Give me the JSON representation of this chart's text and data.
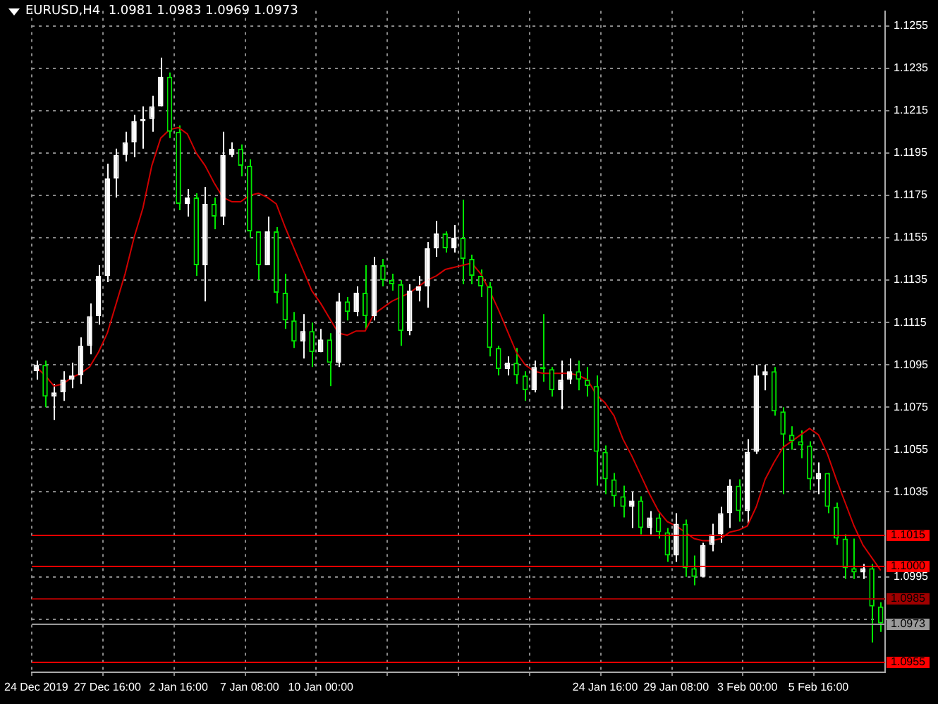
{
  "chart_data": {
    "type": "candlestick",
    "title": "EURUSD,H4  1.0981 1.0983 1.0969 1.0973",
    "colors": [
      "#ffffff",
      "#00e600",
      "#ffffff",
      "#ffffff",
      "#ffffff",
      "#ffffff",
      "#ffffff",
      "#ffffff",
      "#ffffff",
      "#ffffff",
      "#ffffff",
      "#ffffff",
      "#ffffff",
      "#ffffff",
      "#ffffff",
      "#00e600",
      "#00e600",
      "#ffffff",
      "#00e600",
      "#ffffff",
      "#00e600",
      "#ffffff",
      "#ffffff",
      "#00e600",
      "#00e600",
      "#00e600",
      "#ffffff",
      "#00e600",
      "#00e600",
      "#00e600",
      "#ffffff",
      "#00e600",
      "#ffffff",
      "#00e600",
      "#ffffff",
      "#00e600",
      "#ffffff",
      "#00e600",
      "#ffffff",
      "#00e600",
      "#00e600",
      "#00e600",
      "#ffffff",
      "#ffffff",
      "#ffffff",
      "#ffffff",
      "#00e600",
      "#ffffff",
      "#00e600",
      "#00e600",
      "#00e600",
      "#00e600",
      "#00e600",
      "#ffffff",
      "#00e600",
      "#00e600",
      "#ffffff",
      "#00e600",
      "#00e600",
      "#ffffff",
      "#ffffff",
      "#00e600",
      "#00e600",
      "#00e600",
      "#00e600",
      "#00e600",
      "#00e600",
      "#ffffff",
      "#00e600",
      "#ffffff",
      "#00e600",
      "#00e600",
      "#ffffff",
      "#00e600",
      "#00e600",
      "#ffffff",
      "#ffffff",
      "#ffffff",
      "#ffffff",
      "#00e600",
      "#ffffff",
      "#ffffff",
      "#ffffff",
      "#00e600",
      "#00e600",
      "#00e600",
      "#00e600",
      "#00e600",
      "#ffffff",
      "#00e600",
      "#00e600",
      "#00e600",
      "#00e600",
      "#ffffff",
      "#00e600",
      "#00e600"
    ],
    "categories": [
      "24 Dec 2019",
      null,
      null,
      null,
      null,
      null,
      null,
      null,
      "27 Dec 16:00",
      null,
      null,
      null,
      null,
      null,
      null,
      null,
      "2 Jan 16:00",
      null,
      null,
      null,
      null,
      null,
      null,
      null,
      "7 Jan 08:00",
      null,
      null,
      null,
      null,
      null,
      null,
      null,
      "10 Jan 00:00",
      null,
      null,
      null,
      null,
      null,
      null,
      null,
      null,
      null,
      null,
      null,
      null,
      null,
      null,
      null,
      null,
      null,
      null,
      null,
      null,
      null,
      null,
      null,
      null,
      null,
      null,
      null,
      null,
      null,
      null,
      null,
      "24 Jan 16:00",
      null,
      null,
      null,
      null,
      null,
      null,
      null,
      "29 Jan 08:00",
      null,
      null,
      null,
      null,
      null,
      null,
      null,
      "3 Feb 00:00",
      null,
      null,
      null,
      null,
      null,
      null,
      null,
      "5 Feb 16:00",
      null,
      null,
      null,
      null,
      null,
      null,
      null
    ],
    "ohlc": [
      [
        1.1092,
        1.1097,
        1.1088,
        1.1095
      ],
      [
        1.1095,
        1.1097,
        1.1075,
        1.108
      ],
      [
        1.108,
        1.1086,
        1.1069,
        1.1082
      ],
      [
        1.1082,
        1.1092,
        1.1078,
        1.1088
      ],
      [
        1.1088,
        1.1096,
        1.1084,
        1.109
      ],
      [
        1.109,
        1.1108,
        1.1086,
        1.1104
      ],
      [
        1.1104,
        1.1124,
        1.11,
        1.1118
      ],
      [
        1.1118,
        1.1142,
        1.1114,
        1.1137
      ],
      [
        1.1137,
        1.119,
        1.1134,
        1.1183
      ],
      [
        1.1183,
        1.1197,
        1.1174,
        1.1194
      ],
      [
        1.1194,
        1.1205,
        1.1191,
        1.12
      ],
      [
        1.12,
        1.1213,
        1.1193,
        1.121
      ],
      [
        1.121,
        1.1217,
        1.1197,
        1.1211
      ],
      [
        1.1211,
        1.1222,
        1.1205,
        1.1217
      ],
      [
        1.1217,
        1.124,
        1.1217,
        1.1231
      ],
      [
        1.1231,
        1.1233,
        1.1202,
        1.1205
      ],
      [
        1.1205,
        1.1208,
        1.1168,
        1.1171
      ],
      [
        1.1171,
        1.1178,
        1.1165,
        1.1174
      ],
      [
        1.1174,
        1.1176,
        1.1137,
        1.1142
      ],
      [
        1.1142,
        1.1179,
        1.1125,
        1.1171
      ],
      [
        1.1171,
        1.1174,
        1.1159,
        1.1165
      ],
      [
        1.1165,
        1.1205,
        1.1161,
        1.1194
      ],
      [
        1.1194,
        1.12,
        1.1193,
        1.1197
      ],
      [
        1.1197,
        1.1199,
        1.1184,
        1.1189
      ],
      [
        1.1189,
        1.1192,
        1.1155,
        1.1158
      ],
      [
        1.1158,
        1.1158,
        1.1135,
        1.1142
      ],
      [
        1.1142,
        1.1165,
        1.1142,
        1.1158
      ],
      [
        1.1158,
        1.116,
        1.1124,
        1.1129
      ],
      [
        1.1129,
        1.1138,
        1.1112,
        1.1116
      ],
      [
        1.1116,
        1.112,
        1.1103,
        1.1106
      ],
      [
        1.1106,
        1.1119,
        1.1098,
        1.1111
      ],
      [
        1.1111,
        1.1115,
        1.1094,
        1.1101
      ],
      [
        1.1101,
        1.1112,
        1.1101,
        1.1107
      ],
      [
        1.1107,
        1.111,
        1.1085,
        1.1096
      ],
      [
        1.1096,
        1.1129,
        1.1094,
        1.1125
      ],
      [
        1.1125,
        1.1127,
        1.1116,
        1.112
      ],
      [
        1.112,
        1.1132,
        1.1118,
        1.1129
      ],
      [
        1.1129,
        1.1142,
        1.1112,
        1.1118
      ],
      [
        1.1118,
        1.1146,
        1.1116,
        1.1142
      ],
      [
        1.1142,
        1.1145,
        1.1132,
        1.1135
      ],
      [
        1.1135,
        1.1138,
        1.113,
        1.1133
      ],
      [
        1.1133,
        1.1135,
        1.1104,
        1.1111
      ],
      [
        1.1111,
        1.1133,
        1.1109,
        1.113
      ],
      [
        1.113,
        1.1137,
        1.1125,
        1.1132
      ],
      [
        1.1132,
        1.1153,
        1.1122,
        1.115
      ],
      [
        1.115,
        1.1163,
        1.1146,
        1.1157
      ],
      [
        1.1157,
        1.1158,
        1.1148,
        1.115
      ],
      [
        1.115,
        1.1161,
        1.1148,
        1.1155
      ],
      [
        1.1155,
        1.1173,
        1.1133,
        1.1145
      ],
      [
        1.1145,
        1.1147,
        1.1133,
        1.1137
      ],
      [
        1.1137,
        1.114,
        1.1127,
        1.1132
      ],
      [
        1.1132,
        1.1134,
        1.1099,
        1.1103
      ],
      [
        1.1103,
        1.1104,
        1.109,
        1.1093
      ],
      [
        1.1093,
        1.1099,
        1.109,
        1.1096
      ],
      [
        1.1096,
        1.1103,
        1.1086,
        1.109
      ],
      [
        1.109,
        1.1092,
        1.1078,
        1.1083
      ],
      [
        1.1083,
        1.1097,
        1.1082,
        1.1094
      ],
      [
        1.1094,
        1.1119,
        1.1087,
        1.1093
      ],
      [
        1.1093,
        1.1094,
        1.108,
        1.1083
      ],
      [
        1.1083,
        1.1097,
        1.1074,
        1.1088
      ],
      [
        1.1088,
        1.1098,
        1.1086,
        1.1092
      ],
      [
        1.1092,
        1.1097,
        1.1083,
        1.1088
      ],
      [
        1.1088,
        1.1094,
        1.108,
        1.1085
      ],
      [
        1.1085,
        1.109,
        1.1038,
        1.1054
      ],
      [
        1.1054,
        1.1057,
        1.1034,
        1.1041
      ],
      [
        1.1041,
        1.1044,
        1.1028,
        1.1033
      ],
      [
        1.1033,
        1.1038,
        1.1023,
        1.1028
      ],
      [
        1.1028,
        1.1035,
        1.1018,
        1.1031
      ],
      [
        1.1031,
        1.1033,
        1.1015,
        1.1018
      ],
      [
        1.1018,
        1.1026,
        1.1015,
        1.1023
      ],
      [
        1.1023,
        1.1025,
        1.1013,
        1.1016
      ],
      [
        1.1016,
        1.1018,
        1.1002,
        1.1005
      ],
      [
        1.1005,
        1.1025,
        1.1002,
        1.102
      ],
      [
        1.102,
        1.1022,
        1.0995,
        1.0999
      ],
      [
        1.0999,
        1.1005,
        1.0991,
        1.0995
      ],
      [
        1.0995,
        1.1011,
        1.0995,
        1.101
      ],
      [
        1.101,
        1.102,
        1.1007,
        1.1015
      ],
      [
        1.1015,
        1.1028,
        1.1011,
        1.1025
      ],
      [
        1.1025,
        1.1041,
        1.1018,
        1.1038
      ],
      [
        1.1038,
        1.1041,
        1.1021,
        1.1026
      ],
      [
        1.1026,
        1.106,
        1.102,
        1.1054
      ],
      [
        1.1054,
        1.1095,
        1.1053,
        1.109
      ],
      [
        1.109,
        1.1095,
        1.1083,
        1.1092
      ],
      [
        1.1092,
        1.1094,
        1.1071,
        1.1073
      ],
      [
        1.1073,
        1.1075,
        1.1034,
        1.1062
      ],
      [
        1.1062,
        1.1066,
        1.1055,
        1.1059
      ],
      [
        1.1059,
        1.1064,
        1.1051,
        1.1057
      ],
      [
        1.1057,
        1.1059,
        1.1036,
        1.1041
      ],
      [
        1.1041,
        1.1049,
        1.1034,
        1.1044
      ],
      [
        1.1044,
        1.1044,
        1.1025,
        1.1028
      ],
      [
        1.1028,
        1.103,
        1.101,
        1.1013
      ],
      [
        1.1013,
        1.1015,
        1.0994,
        1.0999
      ],
      [
        1.0999,
        1.1013,
        1.0994,
        1.0997
      ],
      [
        1.0997,
        1.1001,
        1.0994,
        1.0999
      ],
      [
        1.0999,
        1.1001,
        1.0964,
        1.0981
      ],
      [
        1.0981,
        1.0983,
        1.0969,
        1.0973
      ]
    ],
    "series": [
      {
        "type": "line",
        "color": "#d00000",
        "values": [
          1.1094,
          1.109,
          1.1085,
          1.1086,
          1.1089,
          1.1091,
          1.1094,
          1.1101,
          1.111,
          1.1124,
          1.1138,
          1.1155,
          1.1169,
          1.1189,
          1.1202,
          1.1206,
          1.1207,
          1.1204,
          1.1195,
          1.1189,
          1.1181,
          1.1174,
          1.1172,
          1.1172,
          1.1175,
          1.1176,
          1.1174,
          1.1171,
          1.116,
          1.115,
          1.114,
          1.113,
          1.1124,
          1.1117,
          1.111,
          1.1109,
          1.1111,
          1.1111,
          1.1119,
          1.1122,
          1.1125,
          1.1127,
          1.1129,
          1.1132,
          1.1135,
          1.1137,
          1.114,
          1.1141,
          1.1142,
          1.1143,
          1.1138,
          1.113,
          1.1121,
          1.1111,
          1.1101,
          1.1095,
          1.1092,
          1.1091,
          1.1091,
          1.1091,
          1.1091,
          1.109,
          1.1088,
          1.1081,
          1.1077,
          1.1071,
          1.106,
          1.1052,
          1.1043,
          1.1034,
          1.1026,
          1.1021,
          1.1019,
          1.1016,
          1.1013,
          1.1012,
          1.1012,
          1.1013,
          1.1016,
          1.1017,
          1.1019,
          1.1028,
          1.1041,
          1.1049,
          1.1056,
          1.1059,
          1.1062,
          1.1065,
          1.1062,
          1.1053,
          1.1041,
          1.103,
          1.1019,
          1.101,
          1.1004,
          1.0998
        ]
      }
    ],
    "ylim": [
      1.095,
      1.1262
    ],
    "yticks": [
      1.1255,
      1.1235,
      1.1215,
      1.1195,
      1.1175,
      1.1155,
      1.1135,
      1.1115,
      1.1095,
      1.1075,
      1.1055,
      1.1035,
      1.0995,
      {
        "value": 1.0975,
        "label": null
      }
    ],
    "ref_lines": [
      {
        "axis": "y",
        "value": 1.1015,
        "label": "1.1015",
        "color": "#ff0000"
      },
      {
        "axis": "y",
        "value": 1.1,
        "label": "1.1000",
        "color": "#ff0000"
      },
      {
        "axis": "y",
        "value": 1.0985,
        "label": "1.0985",
        "color": "#a00000"
      },
      {
        "axis": "y",
        "value": 1.0973,
        "label": "1.0973",
        "color": "#9a9a9a"
      },
      {
        "axis": "y",
        "value": 1.0955,
        "label": "1.0955",
        "color": "#ff0000"
      }
    ],
    "grid": true
  }
}
